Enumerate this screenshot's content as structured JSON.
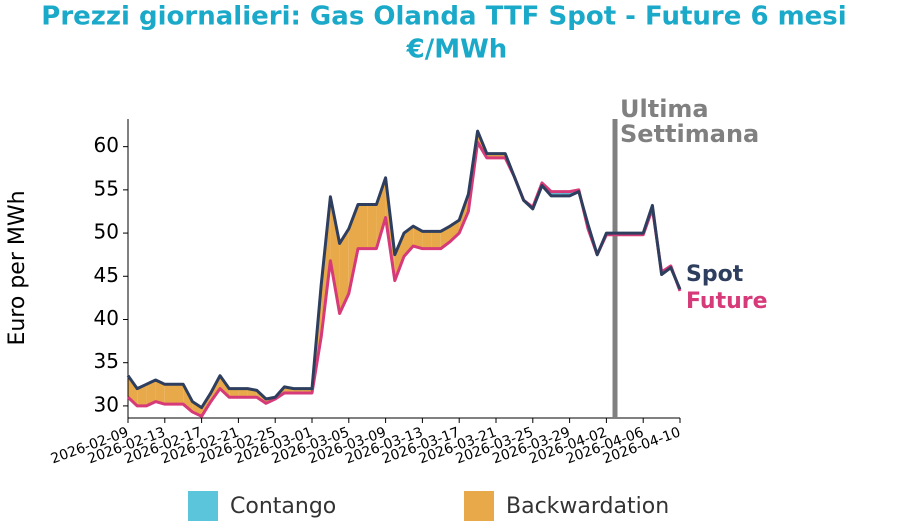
{
  "chart_data": {
    "type": "line",
    "title": "Prezzi giornalieri: Gas Olanda TTF Spot - Future 6 mesi",
    "subtitle": "€/MWh",
    "y_label": "Euro per MWh",
    "categories": [
      "2026-02-09",
      null,
      null,
      null,
      "2026-02-13",
      null,
      null,
      null,
      "2026-02-17",
      null,
      null,
      null,
      "2026-02-21",
      null,
      null,
      null,
      "2026-02-25",
      null,
      null,
      null,
      "2026-03-01",
      null,
      null,
      null,
      "2026-03-05",
      null,
      null,
      null,
      "2026-03-09",
      null,
      null,
      null,
      "2026-03-13",
      null,
      null,
      null,
      "2026-03-17",
      null,
      null,
      null,
      "2026-03-21",
      null,
      null,
      null,
      "2026-03-25",
      null,
      null,
      null,
      "2026-03-29",
      null,
      null,
      null,
      "2026-04-02",
      null,
      null,
      null,
      "2026-04-06",
      null,
      null,
      null,
      "2026-04-10"
    ],
    "series": [
      {
        "name": "Spot",
        "color": "#2e3e5e",
        "values": [
          33.5,
          32,
          32.5,
          33,
          32.5,
          32.5,
          32.5,
          30.5,
          29.8,
          31.5,
          33.5,
          32,
          32,
          32,
          31.8,
          30.8,
          31,
          32.2,
          32,
          32,
          32,
          44,
          54.2,
          48.8,
          50.5,
          53.3,
          53.3,
          53.3,
          56.4,
          47.5,
          50,
          50.8,
          50.2,
          50.2,
          50.2,
          50.8,
          51.5,
          54.5,
          61.8,
          59.2,
          59.2,
          59.2,
          56.5,
          53.8,
          52.8,
          55.5,
          54.3,
          54.3,
          54.3,
          54.8,
          51,
          47.5,
          50,
          50,
          50,
          50,
          50,
          53.2,
          45.2,
          46,
          43.5
        ]
      },
      {
        "name": "Future",
        "color": "#d63a78",
        "values": [
          31,
          30,
          30,
          30.5,
          30.2,
          30.2,
          30.2,
          29.3,
          28.8,
          30.5,
          32,
          31,
          31,
          31,
          31,
          30.3,
          30.8,
          31.5,
          31.5,
          31.5,
          31.5,
          38,
          46.8,
          40.7,
          43,
          48.2,
          48.2,
          48.2,
          51.8,
          44.5,
          47.3,
          48.5,
          48.2,
          48.2,
          48.2,
          49,
          50,
          52.5,
          60.5,
          58.7,
          58.7,
          58.7,
          56.5,
          53.8,
          53,
          55.8,
          54.8,
          54.8,
          54.8,
          55,
          50.5,
          47.5,
          49.8,
          49.8,
          49.8,
          49.8,
          49.8,
          52.8,
          45.5,
          46.2,
          43.3
        ]
      }
    ],
    "fill_legend": [
      {
        "name": "Contango",
        "color": "#5bc5db"
      },
      {
        "name": "Backwardation",
        "color": "#e8a94a"
      }
    ],
    "annotation": [
      "Ultima",
      "Settimana"
    ],
    "annotation_color": "#808080",
    "ylim": [
      28.6,
      63.2
    ],
    "yticks": [
      30,
      35,
      40,
      45,
      50,
      55,
      60
    ]
  }
}
